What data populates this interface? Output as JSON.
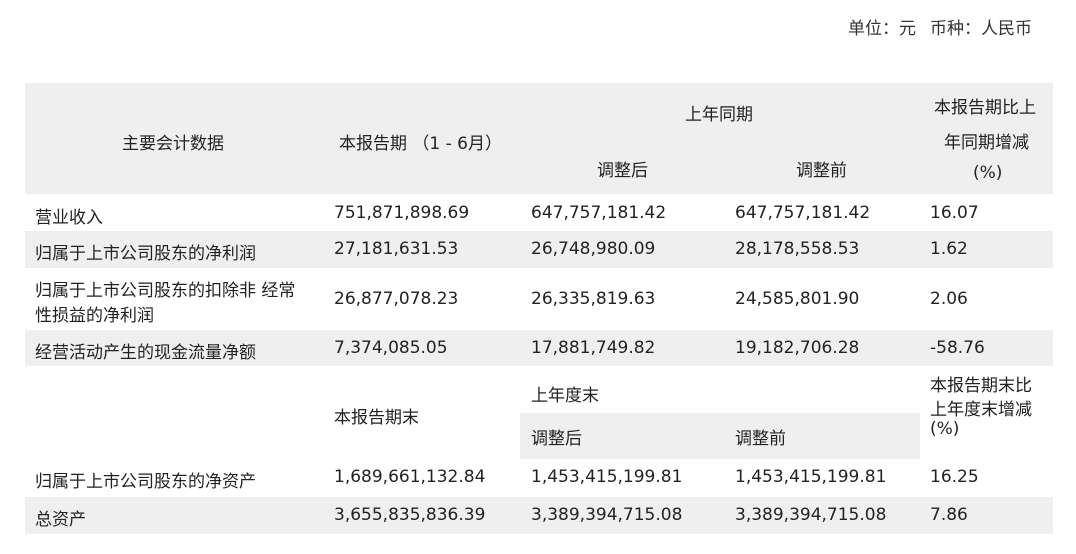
{
  "unit": {
    "unit_label": "单位：",
    "unit_value": "元",
    "currency_label": "币种：",
    "currency_value": "人民币"
  },
  "header": {
    "col_item": "主要会计数据",
    "col_current": "本报告期 （1 - 6月）",
    "col_prior_group": "上年同期",
    "col_adjusted": "调整后",
    "col_before_adjust": "调整前",
    "col_change_line1": "本报告期比上",
    "col_change_line2": "年同期增减",
    "col_change_line3": "(%)"
  },
  "rows_period": [
    {
      "label": "营业收入",
      "current": "751,871,898.69",
      "adjusted": "647,757,181.42",
      "before": "647,757,181.42",
      "change": "16.07"
    },
    {
      "label": "归属于上市公司股东的净利润",
      "current": "27,181,631.53",
      "adjusted": "26,748,980.09",
      "before": "28,178,558.53",
      "change": "1.62"
    },
    {
      "label_line1": "归属于上市公司股东的扣除非 经常",
      "label_line2": "性损益的净利润",
      "current": "26,877,078.23",
      "adjusted": "26,335,819.63",
      "before": "24,585,801.90",
      "change": "2.06"
    },
    {
      "label": "经营活动产生的现金流量净额",
      "current": "7,374,085.05",
      "adjusted": "17,881,749.82",
      "before": "19,182,706.28",
      "change": "-58.76"
    }
  ],
  "header2": {
    "col_current_end": "本报告期末",
    "col_prior_year_end": "上年度末",
    "col_adjusted": "调整后",
    "col_before_adjust": "调整前",
    "col_change_line1": "本报告期末比",
    "col_change_line2": "上年度末增减",
    "col_change_line3": "(%)"
  },
  "rows_end": [
    {
      "label": "归属于上市公司股东的净资产",
      "current": "1,689,661,132.84",
      "adjusted": "1,453,415,199.81",
      "before": "1,453,415,199.81",
      "change": "16.25"
    },
    {
      "label": "总资产",
      "current": "3,655,835,836.39",
      "adjusted": "3,389,394,715.08",
      "before": "3,389,394,715.08",
      "change": "7.86"
    }
  ]
}
